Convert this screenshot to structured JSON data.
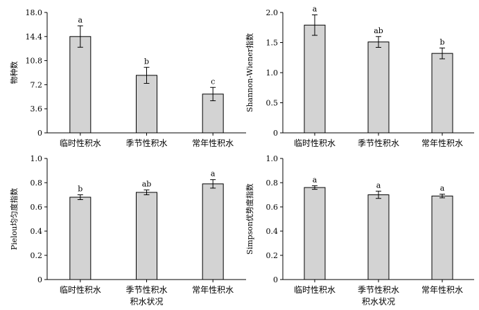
{
  "chart_data": [
    {
      "type": "bar",
      "categories": [
        "临时性积水",
        "季节性积水",
        "常年性积水"
      ],
      "values": [
        14.4,
        8.6,
        5.8
      ],
      "errors": [
        1.6,
        1.2,
        1.0
      ],
      "letters": [
        "a",
        "b",
        "c"
      ],
      "ylabel": "物种数",
      "xlabel": "",
      "ylim": [
        0,
        18.0
      ],
      "yticks": [
        0,
        3.6,
        7.2,
        10.8,
        14.4,
        18.0
      ],
      "ytick_labels": [
        "0",
        "3.6",
        "7.2",
        "10.8",
        "14.4",
        "18.0"
      ]
    },
    {
      "type": "bar",
      "categories": [
        "临时性积水",
        "季节性积水",
        "常年性积水"
      ],
      "values": [
        1.79,
        1.51,
        1.32
      ],
      "errors": [
        0.17,
        0.09,
        0.09
      ],
      "letters": [
        "a",
        "ab",
        "b"
      ],
      "ylabel": "Shannon-Wiener指数",
      "xlabel": "",
      "ylim": [
        0,
        2.0
      ],
      "yticks": [
        0,
        0.5,
        1.0,
        1.5,
        2.0
      ],
      "ytick_labels": [
        "0",
        "0.5",
        "1.0",
        "1.5",
        "2.0"
      ]
    },
    {
      "type": "bar",
      "categories": [
        "临时性积水",
        "季节性积水",
        "常年性积水"
      ],
      "values": [
        0.68,
        0.72,
        0.79
      ],
      "errors": [
        0.02,
        0.02,
        0.035
      ],
      "letters": [
        "b",
        "ab",
        "a"
      ],
      "ylabel": "Pielou均匀度指数",
      "xlabel": "积水状况",
      "ylim": [
        0,
        1.0
      ],
      "yticks": [
        0,
        0.2,
        0.4,
        0.6,
        0.8,
        1.0
      ],
      "ytick_labels": [
        "0",
        "0.2",
        "0.4",
        "0.6",
        "0.8",
        "1.0"
      ]
    },
    {
      "type": "bar",
      "categories": [
        "临时性积水",
        "季节性积水",
        "常年性积水"
      ],
      "values": [
        0.76,
        0.7,
        0.69
      ],
      "errors": [
        0.015,
        0.03,
        0.015
      ],
      "letters": [
        "a",
        "a",
        "a"
      ],
      "ylabel": "Simpson优势度指数",
      "xlabel": "积水状况",
      "ylim": [
        0,
        1.0
      ],
      "yticks": [
        0,
        0.2,
        0.4,
        0.6,
        0.8,
        1.0
      ],
      "ytick_labels": [
        "0",
        "0.2",
        "0.4",
        "0.6",
        "0.8",
        "1.0"
      ]
    }
  ],
  "colors": {
    "bar_fill": "#d3d3d3",
    "bar_stroke": "#000000",
    "axis": "#000000"
  }
}
